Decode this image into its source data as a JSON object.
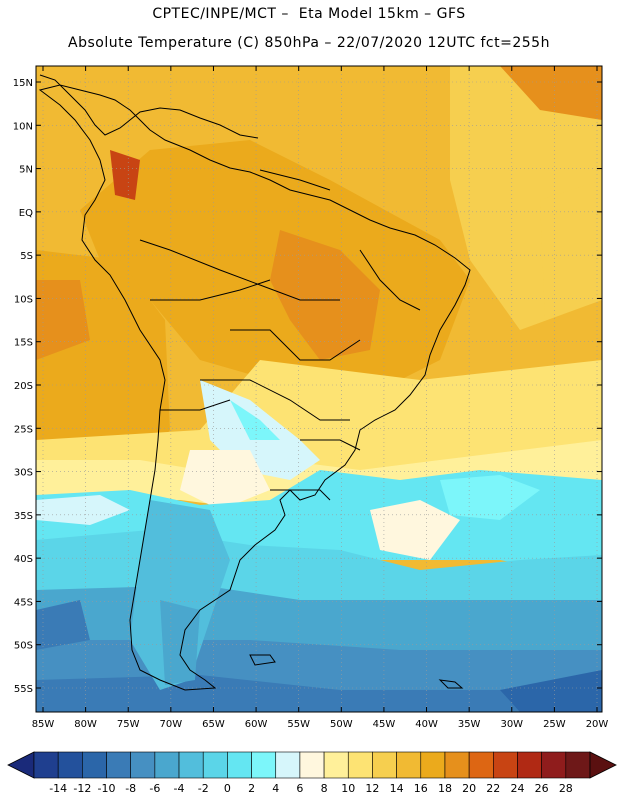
{
  "title": {
    "line1": "CPTEC/INPE/MCT –  Eta Model 15km – GFS",
    "line2": "Absolute Temperature (C) 850hPa – 22/07/2020 12UTC fct=255h"
  },
  "map": {
    "lat_labels": [
      "15N",
      "10N",
      "5N",
      "EQ",
      "5S",
      "10S",
      "15S",
      "20S",
      "25S",
      "30S",
      "35S",
      "40S",
      "45S",
      "50S",
      "55S"
    ],
    "lon_labels": [
      "85W",
      "80W",
      "75W",
      "70W",
      "65W",
      "60W",
      "55W",
      "50W",
      "45W",
      "40W",
      "35W",
      "30W",
      "25W",
      "20W"
    ],
    "lat_values": [
      15,
      10,
      5,
      0,
      -5,
      -10,
      -15,
      -20,
      -25,
      -30,
      -35,
      -40,
      -45,
      -50,
      -55
    ],
    "lon_values": [
      -85,
      -80,
      -75,
      -70,
      -65,
      -60,
      -55,
      -50,
      -45,
      -40,
      -35,
      -30,
      -25,
      -20
    ]
  },
  "colorbar": {
    "labels": [
      "-14",
      "-12",
      "-10",
      "-8",
      "-6",
      "-4",
      "-2",
      "0",
      "2",
      "4",
      "6",
      "8",
      "10",
      "12",
      "14",
      "16",
      "18",
      "20",
      "22",
      "24",
      "26",
      "28"
    ],
    "colors": [
      "#1f3f8f",
      "#23519c",
      "#2b66a9",
      "#3a7bb6",
      "#4690c2",
      "#4aa7ce",
      "#52bedc",
      "#5bd5e8",
      "#64e6f2",
      "#7cf6fa",
      "#d6f6fb",
      "#fff7de",
      "#fff09a",
      "#fde373",
      "#f6cf4f",
      "#f1ba33",
      "#ebaa1c",
      "#e6901c",
      "#dd6613",
      "#c84413",
      "#b02914",
      "#8f1c1c",
      "#6e1818"
    ]
  }
}
